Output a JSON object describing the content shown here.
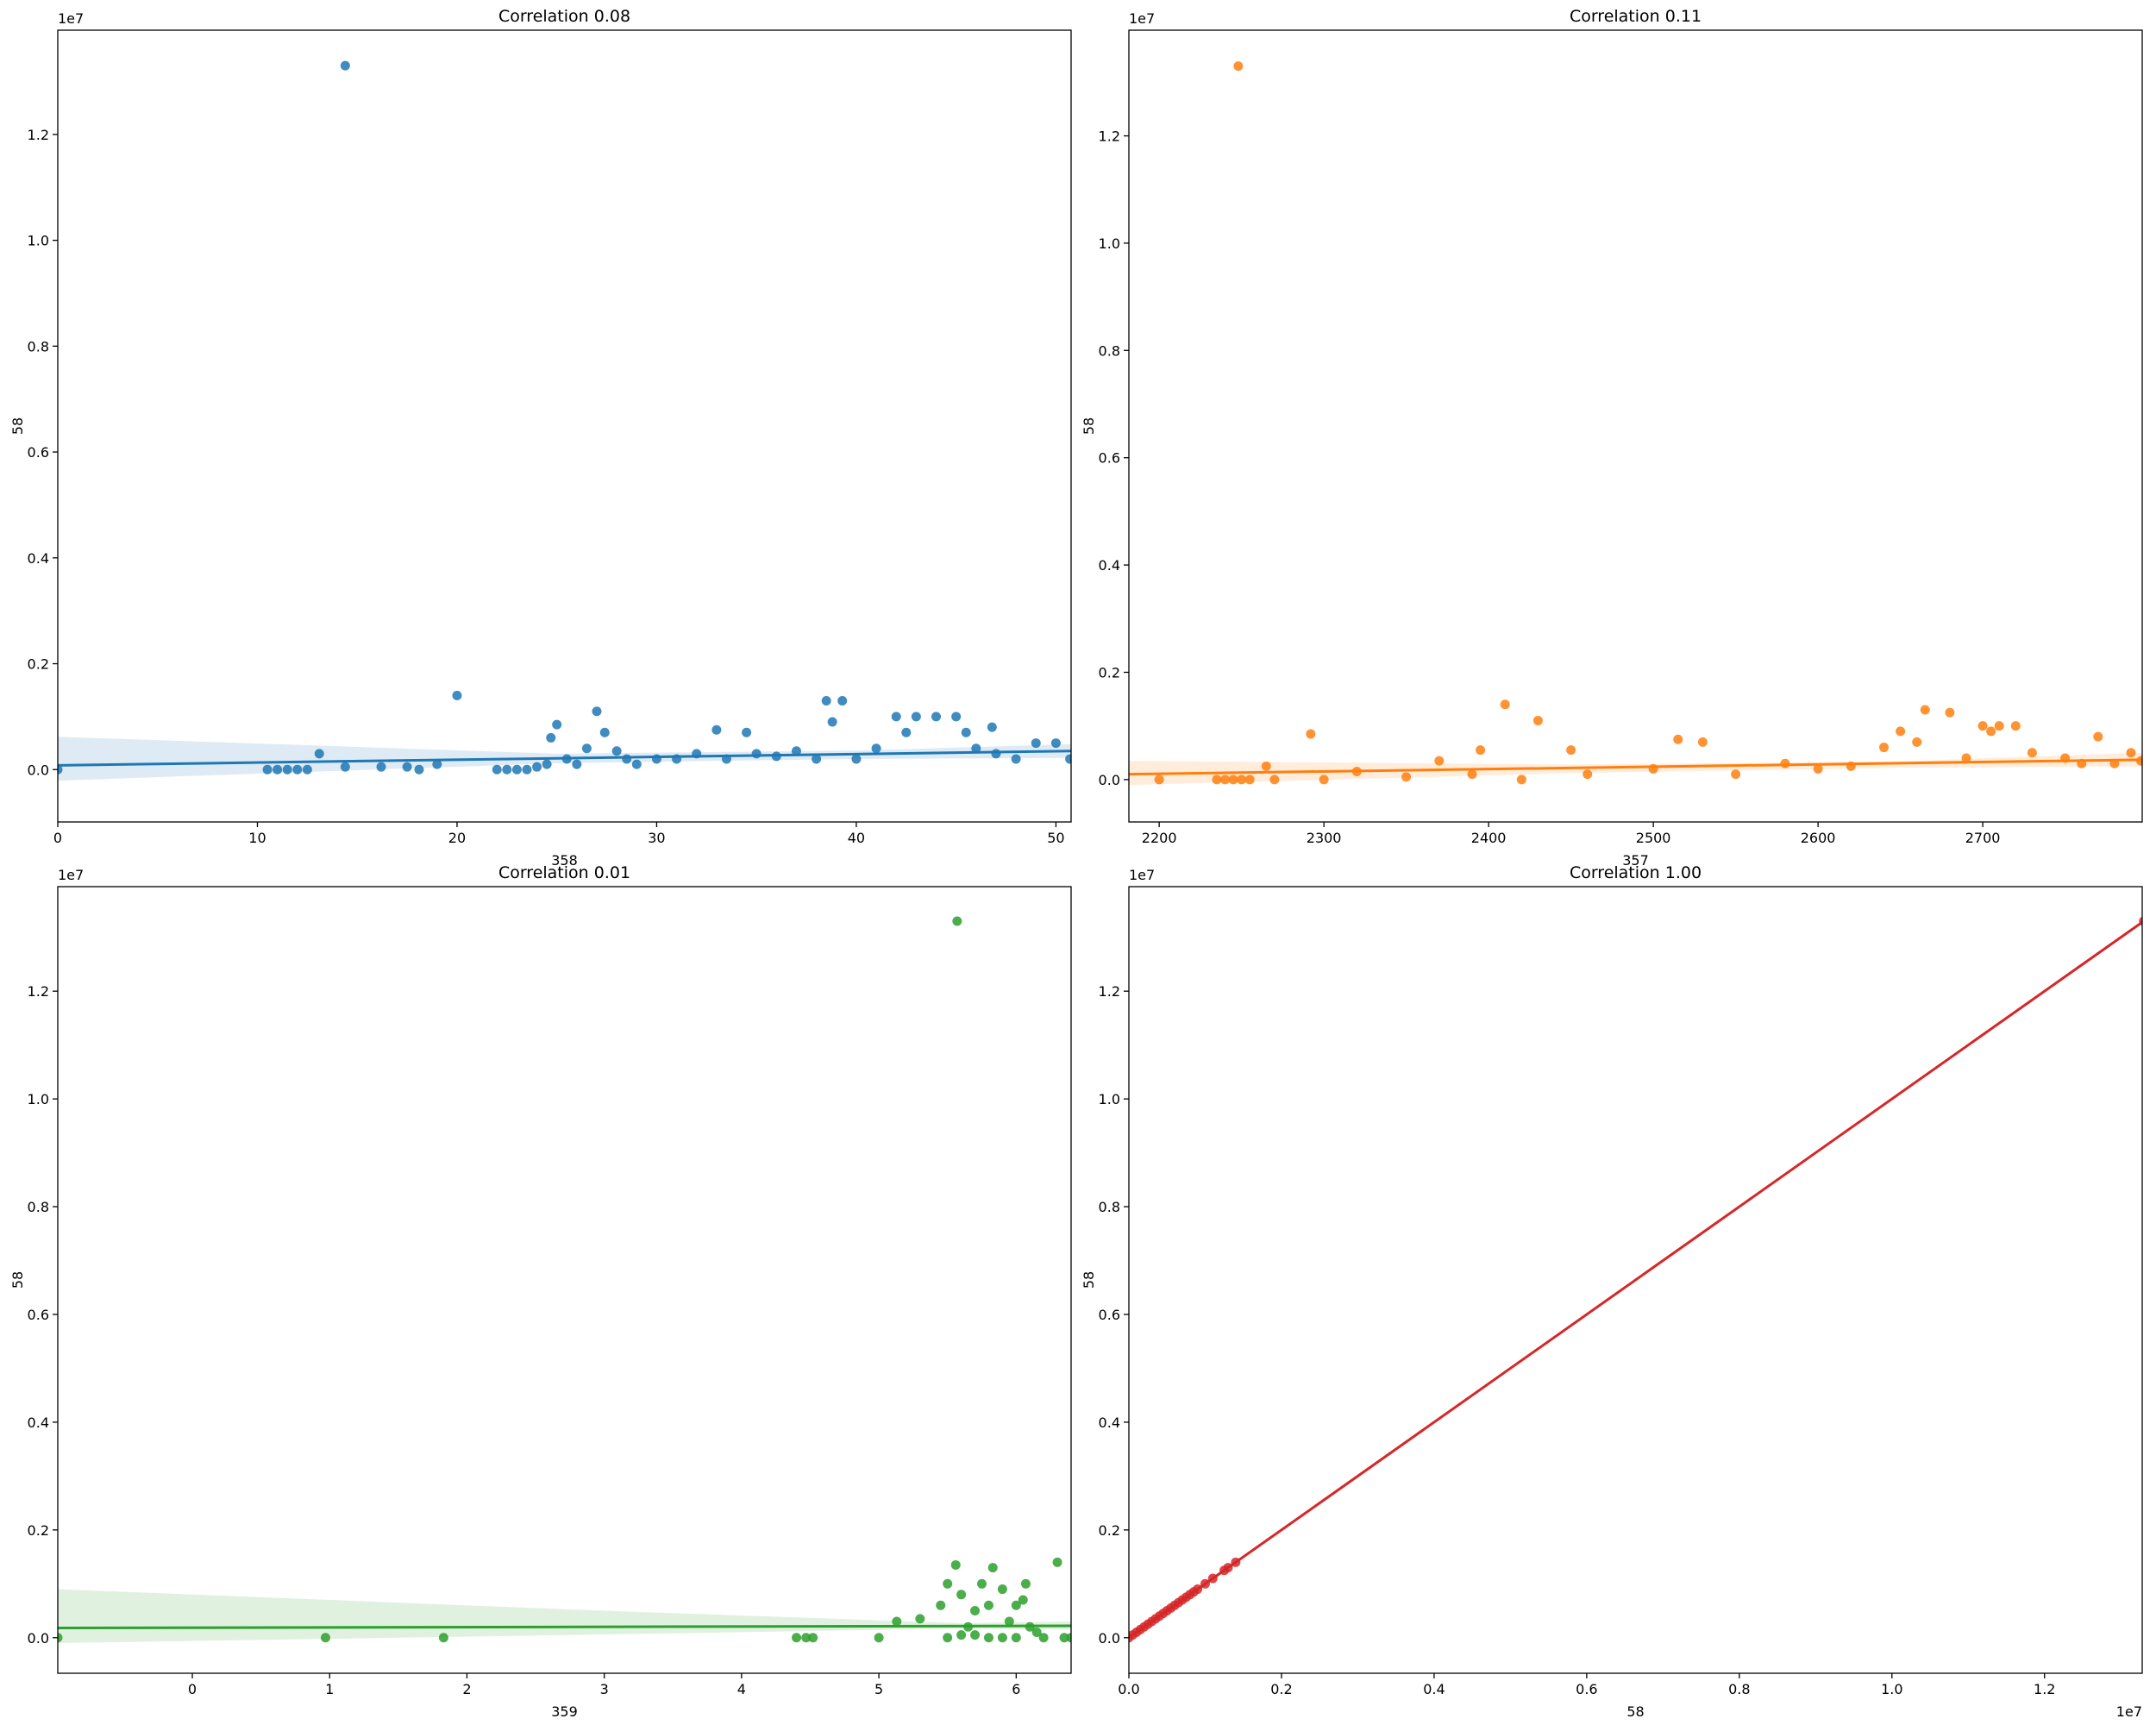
{
  "chart_data": [
    {
      "type": "scatter",
      "title": "Correlation 0.08",
      "x_label": "358",
      "y_label": "58",
      "y_offset_label": "1e7",
      "color": "#1f77b4",
      "xlim": [
        0,
        50.76
      ],
      "xticks": [
        0,
        10,
        20,
        30,
        40,
        50
      ],
      "ylim": [
        -0.099,
        1.397
      ],
      "yticks": [
        {
          "value": 0.0,
          "label": "0.0"
        },
        0.2,
        0.4,
        0.6,
        0.8,
        {
          "value": 1.0,
          "label": "1.0"
        },
        1.2
      ],
      "x": [
        0,
        14.4,
        20,
        13.1,
        10.5,
        11,
        11.5,
        12,
        12.5,
        14.4,
        16.2,
        17.5,
        18.1,
        19,
        22,
        22.5,
        23,
        23.5,
        24,
        24.5,
        24.7,
        25,
        25.5,
        26,
        26.5,
        27,
        27.4,
        28,
        28.5,
        29,
        30,
        31,
        32,
        33,
        33.5,
        34.5,
        35,
        36,
        37,
        38,
        38.5,
        38.8,
        39.3,
        40,
        41,
        42,
        42.5,
        43,
        44,
        45,
        45.5,
        46,
        46.8,
        47,
        48,
        49,
        50,
        50.7
      ],
      "values": [
        0.0,
        1.33,
        0.14,
        0.03,
        0,
        0,
        0,
        0,
        0,
        0.005,
        0.005,
        0.005,
        0,
        0.01,
        0,
        0,
        0,
        0,
        0.005,
        0.01,
        0.06,
        0.085,
        0.02,
        0.01,
        0.04,
        0.11,
        0.07,
        0.035,
        0.02,
        0.01,
        0.02,
        0.02,
        0.03,
        0.075,
        0.02,
        0.07,
        0.03,
        0.025,
        0.035,
        0.02,
        0.13,
        0.09,
        0.13,
        0.02,
        0.04,
        0.1,
        0.07,
        0.1,
        0.1,
        0.1,
        0.07,
        0.04,
        0.08,
        0.03,
        0.02,
        0.05,
        0.05,
        0.02
      ],
      "fit": {
        "x": [
          0,
          50.76
        ],
        "y": [
          0.008,
          0.035
        ]
      },
      "band": {
        "x": [
          0,
          25,
          40,
          50.76
        ],
        "lower": [
          -0.021,
          0.012,
          0.02,
          0.022
        ],
        "upper": [
          0.062,
          0.03,
          0.036,
          0.048
        ]
      }
    },
    {
      "type": "scatter",
      "title": "Correlation 0.11",
      "x_label": "357",
      "y_label": "58",
      "y_offset_label": "1e7",
      "color": "#ff7f0e",
      "xlim": [
        2181.6,
        2796.8
      ],
      "xticks": [
        2200,
        2300,
        2400,
        2500,
        2600,
        2700
      ],
      "ylim": [
        -0.079,
        1.397
      ],
      "yticks": [
        {
          "value": 0.0,
          "label": "0.0"
        },
        0.2,
        0.4,
        0.6,
        0.8,
        {
          "value": 1.0,
          "label": "1.0"
        },
        1.2
      ],
      "x": [
        2248,
        2410,
        2430,
        2292,
        2200,
        2235,
        2240,
        2245,
        2250,
        2255,
        2265,
        2270,
        2300,
        2320,
        2350,
        2370,
        2390,
        2395,
        2420,
        2450,
        2460,
        2500,
        2515,
        2530,
        2550,
        2580,
        2600,
        2620,
        2640,
        2650,
        2660,
        2665,
        2680,
        2690,
        2700,
        2705,
        2710,
        2720,
        2730,
        2750,
        2760,
        2770,
        2780,
        2790,
        2796
      ],
      "values": [
        1.33,
        0.14,
        0.11,
        0.085,
        0,
        0,
        0,
        0,
        0,
        0,
        0.025,
        0,
        0,
        0.015,
        0.005,
        0.035,
        0.01,
        0.055,
        0,
        0.055,
        0.01,
        0.02,
        0.075,
        0.07,
        0.01,
        0.03,
        0.02,
        0.025,
        0.06,
        0.09,
        0.07,
        0.13,
        0.125,
        0.04,
        0.1,
        0.09,
        0.1,
        0.1,
        0.05,
        0.04,
        0.03,
        0.08,
        0.03,
        0.05,
        0.035
      ],
      "fit": {
        "x": [
          2181.6,
          2796.8
        ],
        "y": [
          0.01,
          0.037
        ]
      },
      "band": {
        "x": [
          2181.6,
          2450,
          2650,
          2796.8
        ],
        "lower": [
          -0.01,
          0.012,
          0.022,
          0.025
        ],
        "upper": [
          0.035,
          0.028,
          0.034,
          0.05
        ]
      }
    },
    {
      "type": "scatter",
      "title": "Correlation 0.01",
      "x_label": "359",
      "y_label": "58",
      "y_offset_label": "1e7",
      "color": "#2ca02c",
      "xlim": [
        -0.98,
        6.4
      ],
      "xticks": [
        0,
        1,
        2,
        3,
        4,
        5,
        6
      ],
      "ylim": [
        -0.066,
        1.394
      ],
      "yticks": [
        {
          "value": 0.0,
          "label": "0.0"
        },
        0.2,
        0.4,
        0.6,
        0.8,
        {
          "value": 1.0,
          "label": "1.0"
        },
        1.2
      ],
      "x": [
        -0.98,
        0.97,
        1.83,
        4.4,
        4.47,
        4.52,
        5.0,
        5.13,
        5.3,
        5.45,
        5.5,
        5.57,
        5.56,
        5.6,
        5.65,
        5.7,
        5.75,
        5.8,
        5.83,
        5.9,
        5.95,
        6.0,
        6.05,
        6.07,
        6.1,
        6.15,
        6.2,
        6.3,
        6.35,
        6.4,
        5.5,
        5.6,
        5.7,
        5.8,
        5.9,
        6.0
      ],
      "values": [
        0,
        0,
        0,
        0,
        0,
        0,
        0,
        0.03,
        0.035,
        0.06,
        0.1,
        1.33,
        0.135,
        0.08,
        0.02,
        0.05,
        0.1,
        0.06,
        0.13,
        0.09,
        0.03,
        0.06,
        0.07,
        0.1,
        0.02,
        0.01,
        0.0,
        0.14,
        0.0,
        0.0,
        0.0,
        0.005,
        0.005,
        0.0,
        0.0,
        0.0
      ],
      "fit": {
        "x": [
          -0.98,
          6.4
        ],
        "y": [
          0.018,
          0.022
        ]
      },
      "band": {
        "x": [
          -0.98,
          3,
          5.6,
          6.4
        ],
        "lower": [
          -0.01,
          0.006,
          0.017,
          0.015
        ],
        "upper": [
          0.09,
          0.05,
          0.027,
          0.03
        ]
      }
    },
    {
      "type": "scatter",
      "title": "Correlation 1.00",
      "x_label": "58",
      "y_label": "58",
      "y_offset_label": "1e7",
      "x_offset_label": "1e7",
      "color": "#d62728",
      "xlim": [
        0,
        1.328
      ],
      "xticks": [
        {
          "value": 0.0,
          "label": "0.0"
        },
        0.2,
        0.4,
        0.6,
        0.8,
        {
          "value": 1.0,
          "label": "1.0"
        },
        1.2
      ],
      "ylim": [
        -0.066,
        1.394
      ],
      "yticks": [
        {
          "value": 0.0,
          "label": "0.0"
        },
        0.2,
        0.4,
        0.6,
        0.8,
        {
          "value": 1.0,
          "label": "1.0"
        },
        1.2
      ],
      "x": [
        0,
        0.005,
        0.01,
        0.015,
        0.02,
        0.025,
        0.03,
        0.035,
        0.04,
        0.045,
        0.05,
        0.055,
        0.06,
        0.065,
        0.07,
        0.075,
        0.08,
        0.085,
        0.09,
        0.1,
        0.11,
        0.125,
        0.13,
        0.14,
        1.33
      ],
      "values": [
        0,
        0.005,
        0.01,
        0.015,
        0.02,
        0.025,
        0.03,
        0.035,
        0.04,
        0.045,
        0.05,
        0.055,
        0.06,
        0.065,
        0.07,
        0.075,
        0.08,
        0.085,
        0.09,
        0.1,
        0.11,
        0.125,
        0.13,
        0.14,
        1.33
      ],
      "fit": {
        "x": [
          0,
          1.328
        ],
        "y": [
          0,
          1.328
        ]
      },
      "band": {
        "x": [
          0,
          1.328
        ],
        "lower": [
          -0.001,
          1.326
        ],
        "upper": [
          0.001,
          1.33
        ]
      }
    }
  ]
}
